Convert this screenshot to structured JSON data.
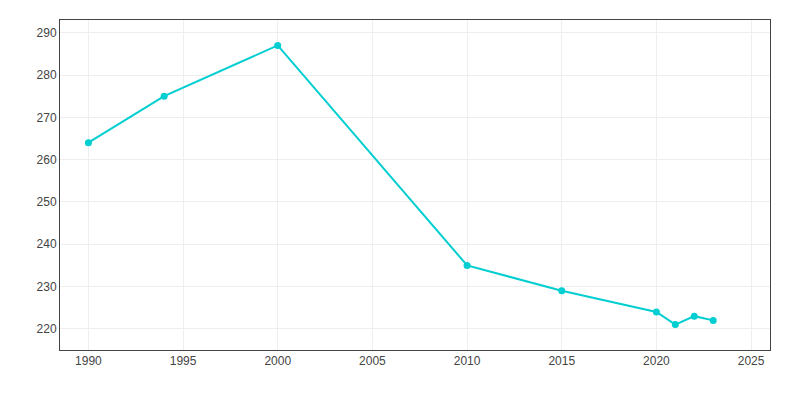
{
  "chart_data": {
    "type": "line",
    "x": [
      1990,
      1994,
      2000,
      2010,
      2015,
      2020,
      2021,
      2022,
      2023
    ],
    "values": [
      264,
      275,
      287,
      235,
      229,
      224,
      221,
      223,
      222
    ],
    "color": "#00CED1",
    "marker": "circle",
    "xlim": [
      1988.5,
      2026
    ],
    "ylim": [
      215,
      293
    ],
    "xticks": [
      1990,
      1995,
      2000,
      2005,
      2010,
      2015,
      2020,
      2025
    ],
    "yticks": [
      220,
      230,
      240,
      250,
      260,
      270,
      280,
      290
    ],
    "grid": true
  }
}
